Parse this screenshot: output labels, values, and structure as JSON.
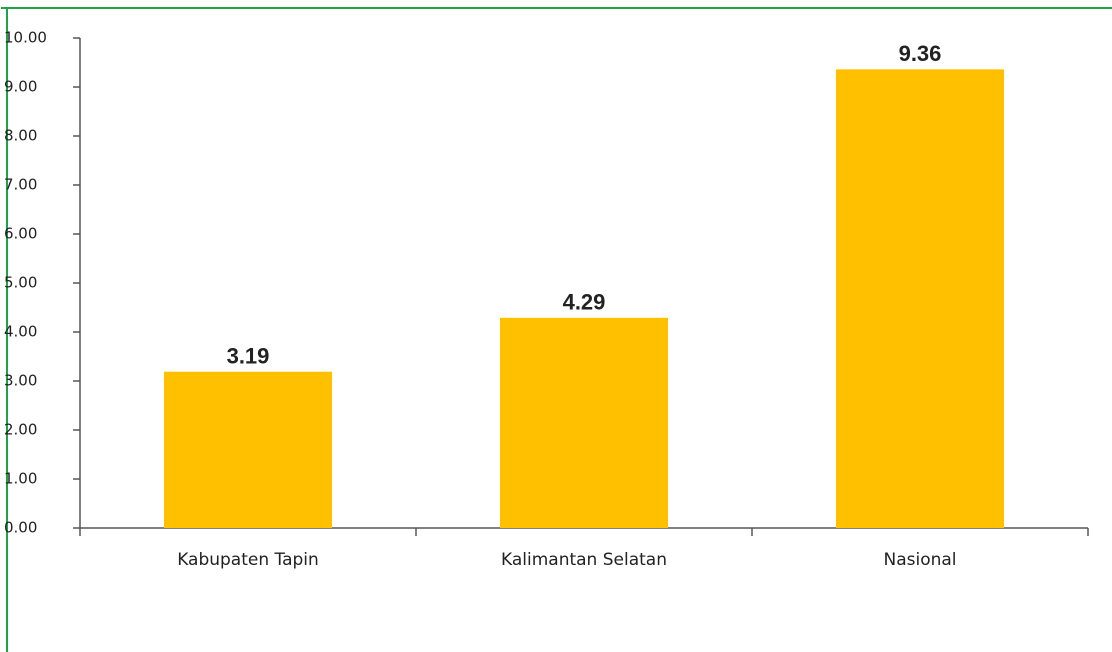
{
  "chart_data": {
    "type": "bar",
    "categories": [
      "Kabupaten Tapin",
      "Kalimantan Selatan",
      "Nasional"
    ],
    "values": [
      3.19,
      4.29,
      9.36
    ],
    "color": "#ffc000",
    "ylim": [
      0,
      10
    ],
    "yticks": [
      {
        "value": 0,
        "label": "0.00"
      },
      {
        "value": 1,
        "label": "1.00"
      },
      {
        "value": 2,
        "label": "2.00"
      },
      {
        "value": 3,
        "label": "3.00"
      },
      {
        "value": 4,
        "label": "4.00"
      },
      {
        "value": 5,
        "label": "5.00"
      },
      {
        "value": 6,
        "label": "6.00"
      },
      {
        "value": 7,
        "label": "7.00"
      },
      {
        "value": 8,
        "label": "8.00"
      },
      {
        "value": 9,
        "label": "9.00"
      },
      {
        "value": 10,
        "label": "10.00"
      }
    ],
    "grid": false
  }
}
